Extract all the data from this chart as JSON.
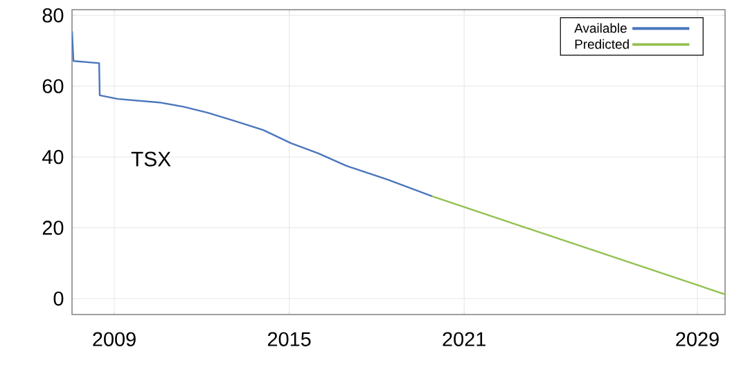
{
  "chart_data": {
    "type": "line",
    "legend": "top right",
    "grid": true,
    "xlim": [
      2007.55,
      2029.95
    ],
    "ylim": [
      -4.5,
      81.6
    ],
    "xticks": [
      2009,
      2015,
      2021,
      2029
    ],
    "yticks": [
      0,
      20,
      40,
      60,
      80
    ],
    "annotations": [
      "TSX"
    ],
    "series": [
      {
        "name": "Available",
        "color": "#4a76bd",
        "x": [
          2007.55,
          2007.6,
          2008.48,
          2008.5,
          2009.12,
          2010.54,
          2011.37,
          2012.21,
          2013.16,
          2014.11,
          2015.06,
          2016.0,
          2016.96,
          2018.38,
          2019.9
        ],
        "values": [
          75.5,
          67.1,
          66.5,
          57.4,
          56.4,
          55.4,
          54.2,
          52.5,
          50.1,
          47.6,
          43.9,
          41.0,
          37.5,
          33.6,
          28.9
        ]
      },
      {
        "name": "Predicted",
        "color": "#92c050",
        "x": [
          2019.9,
          2029.95
        ],
        "values": [
          28.9,
          1.2
        ]
      }
    ]
  }
}
